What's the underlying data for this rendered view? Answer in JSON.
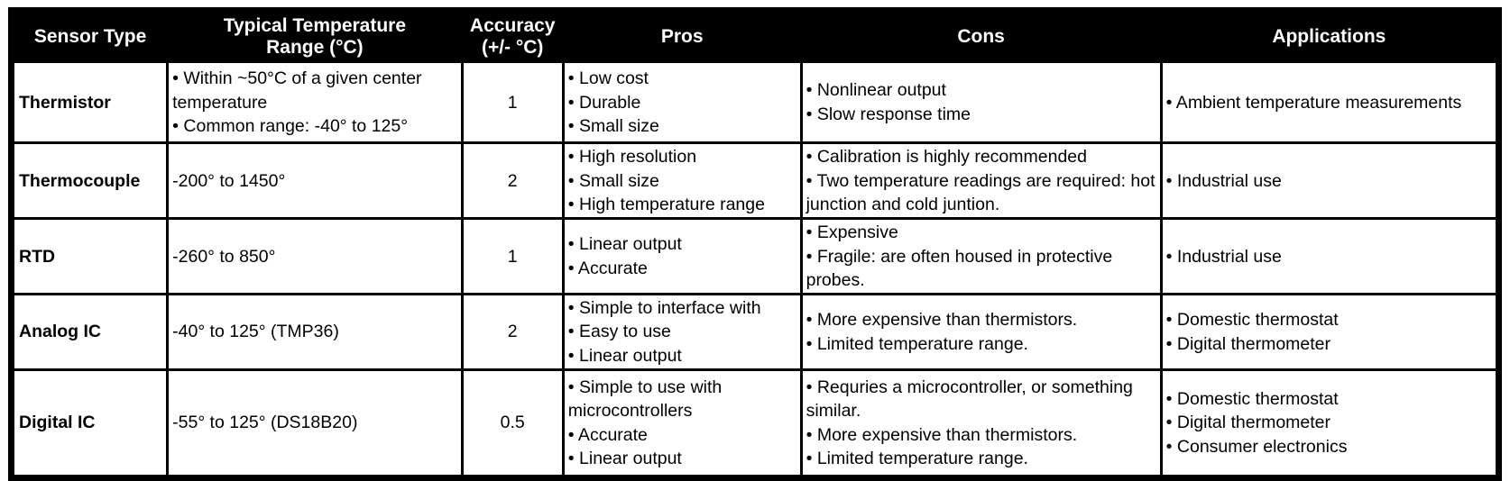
{
  "colors": {
    "header_bg": "#000000",
    "header_text": "#ffffff",
    "body_text": "#000000",
    "border": "#000000",
    "background": "#ffffff"
  },
  "table": {
    "columns": [
      {
        "id": "sensor",
        "lines": [
          "Sensor Type"
        ]
      },
      {
        "id": "range",
        "lines": [
          "Typical Temperature",
          "Range (°C)"
        ]
      },
      {
        "id": "accuracy",
        "lines": [
          "Accuracy",
          "(+/- °C)"
        ]
      },
      {
        "id": "pros",
        "lines": [
          "Pros"
        ]
      },
      {
        "id": "cons",
        "lines": [
          "Cons"
        ]
      },
      {
        "id": "applications",
        "lines": [
          "Applications"
        ]
      }
    ],
    "rows": [
      {
        "sensor": "Thermistor",
        "range": [
          "• Within ~50°C of a given center temperature",
          "• Common range: -40° to 125°"
        ],
        "accuracy": "1",
        "pros": [
          "• Low cost",
          "• Durable",
          "• Small size"
        ],
        "cons": [
          "• Nonlinear output",
          "• Slow response time"
        ],
        "applications": [
          "• Ambient temperature measurements"
        ]
      },
      {
        "sensor": "Thermocouple",
        "range": [
          "-200° to 1450°"
        ],
        "accuracy": "2",
        "pros": [
          "• High resolution",
          "• Small size",
          "• High temperature range"
        ],
        "cons": [
          "• Calibration is highly recommended",
          "• Two temperature readings are required: hot junction and cold juntion."
        ],
        "applications": [
          "• Industrial use"
        ]
      },
      {
        "sensor": "RTD",
        "range": [
          "-260° to 850°"
        ],
        "accuracy": "1",
        "pros": [
          "• Linear output",
          "• Accurate"
        ],
        "cons": [
          "• Expensive",
          "• Fragile: are often housed in protective probes."
        ],
        "applications": [
          "• Industrial use"
        ]
      },
      {
        "sensor": "Analog IC",
        "range": [
          "-40° to 125° (TMP36)"
        ],
        "accuracy": "2",
        "pros": [
          "• Simple to interface with",
          "• Easy to use",
          "• Linear output"
        ],
        "cons": [
          "• More expensive than thermistors.",
          "• Limited temperature range."
        ],
        "applications": [
          "• Domestic thermostat",
          "• Digital thermometer"
        ]
      },
      {
        "sensor": "Digital IC",
        "range": [
          "-55° to 125° (DS18B20)"
        ],
        "accuracy": "0.5",
        "pros": [
          "• Simple to use with microcontrollers",
          "• Accurate",
          "• Linear output"
        ],
        "cons": [
          "• Requries a microcontroller, or something similar.",
          "• More expensive than thermistors.",
          "• Limited temperature range."
        ],
        "applications": [
          "• Domestic thermostat",
          "• Digital thermometer",
          "• Consumer electronics"
        ]
      }
    ]
  }
}
